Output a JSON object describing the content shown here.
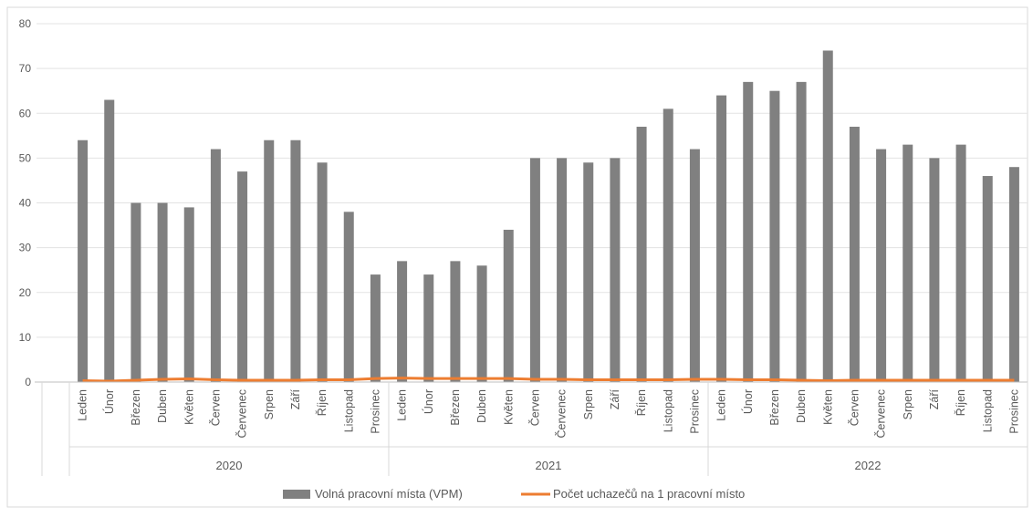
{
  "chart_data": {
    "type": "bar",
    "title": "",
    "xlabel": "",
    "ylabel": "",
    "ylim": [
      0,
      80
    ],
    "yticks": [
      0,
      10,
      20,
      30,
      40,
      50,
      60,
      70,
      80
    ],
    "grid": true,
    "legend_position": "bottom",
    "years": [
      "2020",
      "2021",
      "2022"
    ],
    "months": [
      "Leden",
      "Únor",
      "Březen",
      "Duben",
      "Květen",
      "Červen",
      "Červenec",
      "Srpen",
      "Září",
      "Říjen",
      "Listopad",
      "Prosinec"
    ],
    "series": [
      {
        "name": "Volná pracovní místa (VPM)",
        "type": "bar",
        "color": "#808080",
        "values": [
          54,
          63,
          40,
          40,
          39,
          52,
          47,
          54,
          54,
          49,
          38,
          24,
          27,
          24,
          27,
          26,
          34,
          50,
          50,
          49,
          50,
          57,
          61,
          52,
          64,
          67,
          65,
          67,
          74,
          57,
          52,
          53,
          50,
          53,
          46,
          48
        ]
      },
      {
        "name": "Počet uchazečů na 1 pracovní místo",
        "type": "line",
        "color": "#ed7d31",
        "values": [
          0.3,
          0.2,
          0.4,
          0.6,
          0.7,
          0.5,
          0.4,
          0.4,
          0.4,
          0.5,
          0.5,
          0.8,
          0.9,
          0.8,
          0.8,
          0.8,
          0.8,
          0.6,
          0.6,
          0.5,
          0.5,
          0.5,
          0.5,
          0.6,
          0.6,
          0.5,
          0.5,
          0.4,
          0.3,
          0.4,
          0.4,
          0.4,
          0.4,
          0.4,
          0.4,
          0.4
        ]
      }
    ]
  }
}
